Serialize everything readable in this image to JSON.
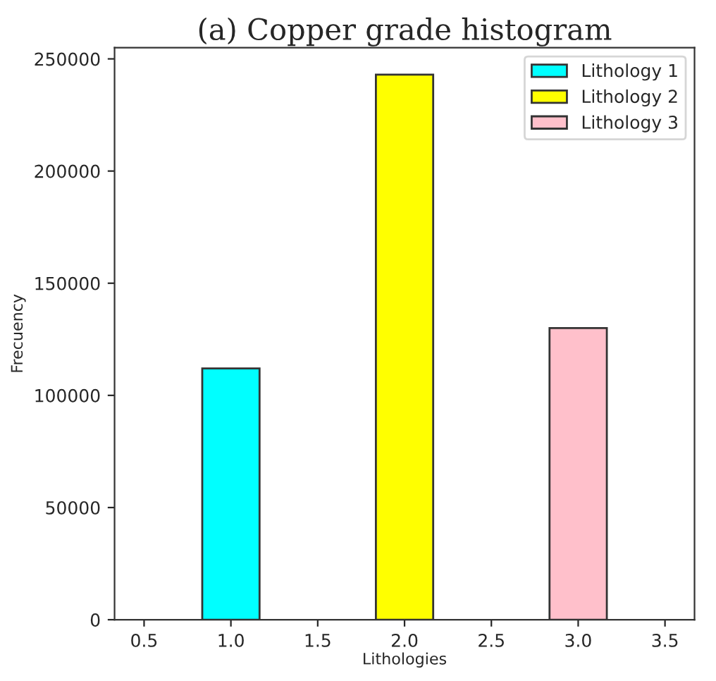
{
  "chart_data": {
    "type": "bar",
    "title": "(a) Copper grade histogram",
    "xlabel": "Lithologies",
    "ylabel": "Frecuency",
    "series": [
      {
        "name": "Lithology 1",
        "color": "#00ffff",
        "x": [
          1.0
        ],
        "values": [
          112000
        ]
      },
      {
        "name": "Lithology 2",
        "color": "#ffff00",
        "x": [
          2.0
        ],
        "values": [
          243000
        ]
      },
      {
        "name": "Lithology 3",
        "color": "#ffc0cb",
        "x": [
          3.0
        ],
        "values": [
          130000
        ]
      }
    ],
    "xlim": [
      0.33,
      3.67
    ],
    "xticks": [
      {
        "value": 0.5,
        "label": "0.5"
      },
      {
        "value": 1.0,
        "label": "1.0"
      },
      {
        "value": 1.5,
        "label": "1.5"
      },
      {
        "value": 2.0,
        "label": "2.0"
      },
      {
        "value": 2.5,
        "label": "2.5"
      },
      {
        "value": 3.0,
        "label": "3.0"
      },
      {
        "value": 3.5,
        "label": "3.5"
      }
    ],
    "ylim": [
      0,
      255000
    ],
    "yticks": [
      0,
      50000,
      100000,
      150000,
      200000,
      250000
    ],
    "grid": false,
    "legend": "top right"
  }
}
